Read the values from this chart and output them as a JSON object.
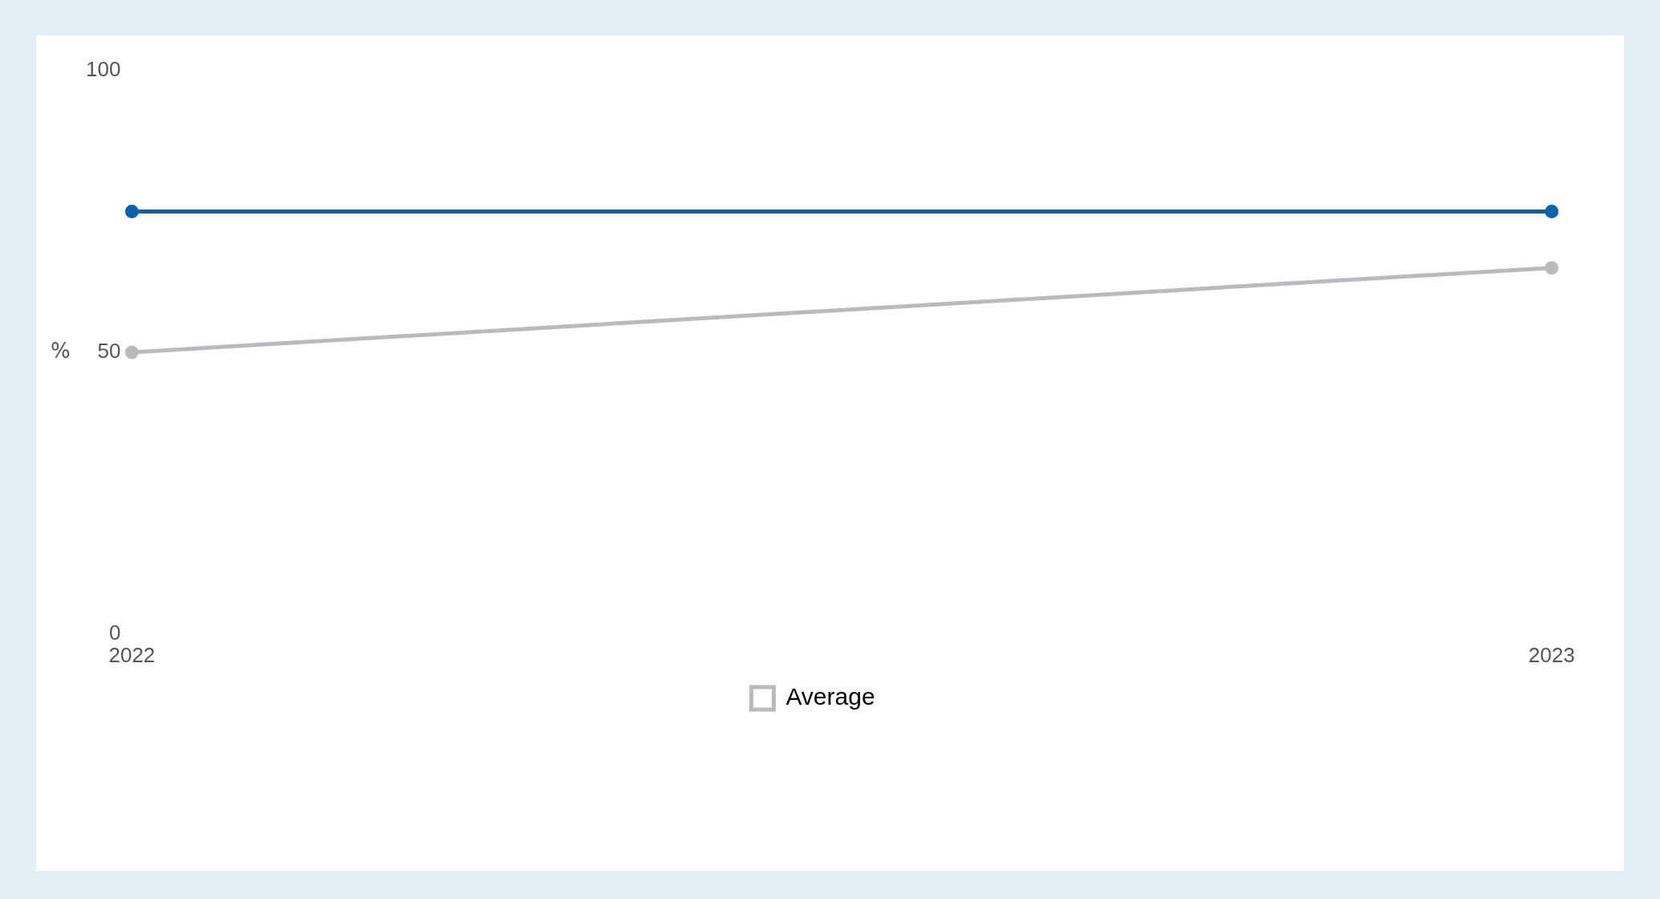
{
  "chart_data": {
    "type": "line",
    "ylabel": "%",
    "categories": [
      "2022",
      "2023"
    ],
    "series": [
      {
        "color": "#0a62ad",
        "values": [
          75,
          75
        ]
      },
      {
        "name": "Average",
        "color": "#b9b9be",
        "values": [
          50,
          65
        ]
      }
    ],
    "ylim": [
      0,
      100
    ],
    "yticks": [
      0,
      50,
      100
    ],
    "grid": false,
    "legend": "bottom",
    "marker": "circle",
    "line_style": "solid"
  }
}
